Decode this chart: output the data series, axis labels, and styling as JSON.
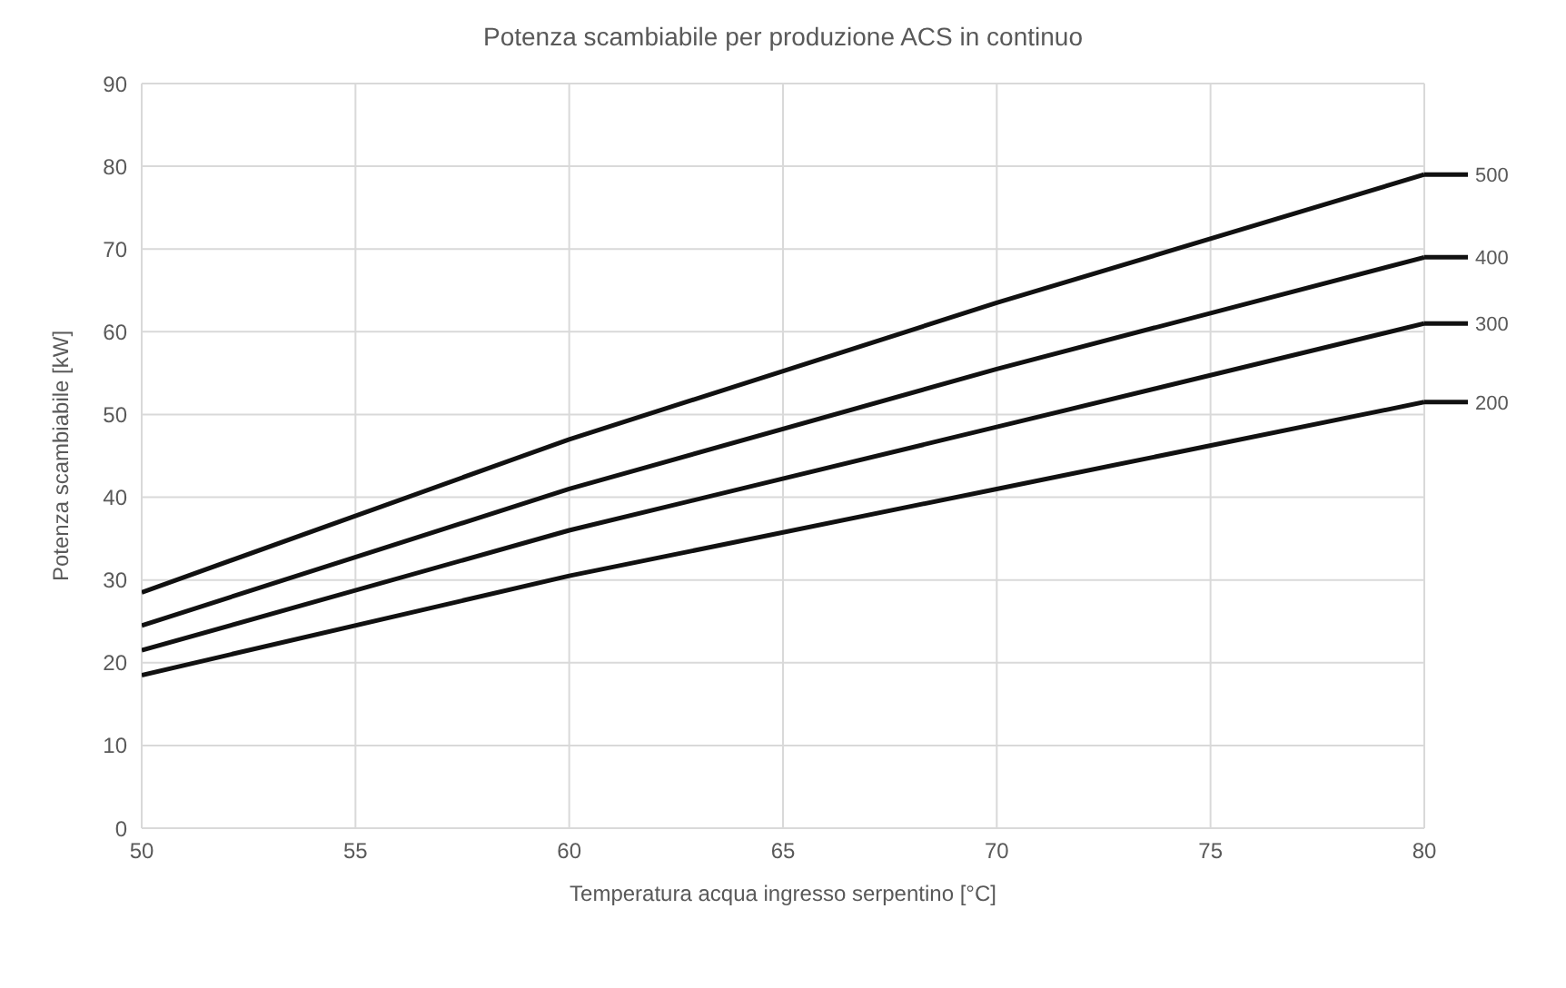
{
  "chart_data": {
    "type": "line",
    "title": "Potenza scambiabile per produzione ACS in continuo",
    "xlabel": "Temperatura acqua ingresso serpentino [°C]",
    "ylabel": "Potenza scambiabile [kW]",
    "x": [
      50,
      60,
      70,
      80
    ],
    "xlim": [
      50,
      80
    ],
    "xticks": [
      50,
      55,
      60,
      65,
      70,
      75,
      80
    ],
    "ylim": [
      0,
      90
    ],
    "yticks": [
      0,
      10,
      20,
      30,
      40,
      50,
      60,
      70,
      80,
      90
    ],
    "grid": true,
    "legend": "right",
    "marker": "none",
    "line_style": "solid",
    "series": [
      {
        "name": "500",
        "color": "#111111",
        "values": [
          28.5,
          47,
          63.5,
          79
        ]
      },
      {
        "name": "400",
        "color": "#111111",
        "values": [
          24.5,
          41,
          55.5,
          69
        ]
      },
      {
        "name": "300",
        "color": "#111111",
        "values": [
          21.5,
          36,
          48.5,
          61
        ]
      },
      {
        "name": "200",
        "color": "#111111",
        "values": [
          18.5,
          30.5,
          41,
          51.5
        ]
      }
    ]
  }
}
